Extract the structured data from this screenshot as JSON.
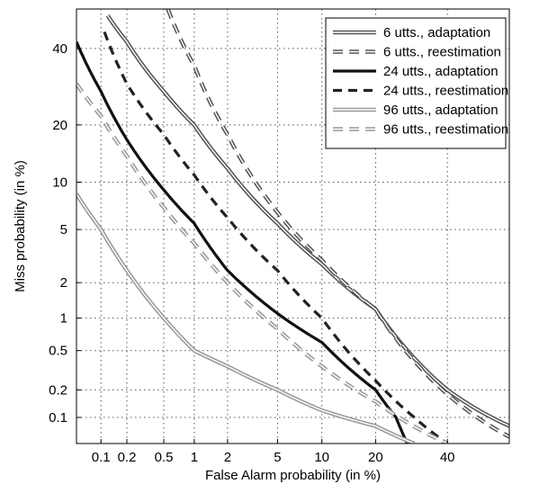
{
  "chart_data": {
    "type": "line",
    "title": "",
    "xlabel": "False Alarm probability (in %)",
    "ylabel": "Miss probability (in %)",
    "x_scale": "probit",
    "y_scale": "probit",
    "xlim": [
      0.05,
      60
    ],
    "ylim": [
      0.05,
      52
    ],
    "x_ticks": [
      0.1,
      0.2,
      0.5,
      1,
      2,
      5,
      10,
      20,
      40
    ],
    "x_tick_labels": [
      "0.1",
      "0.2",
      "0.5",
      "1",
      "2",
      "5",
      "10",
      "20",
      "40"
    ],
    "y_ticks": [
      0.1,
      0.2,
      0.5,
      1,
      2,
      5,
      10,
      20,
      40
    ],
    "y_tick_labels": [
      "0.1",
      "0.2",
      "0.5",
      "1",
      "2",
      "5",
      "10",
      "20",
      "40"
    ],
    "grid": true,
    "legend_position": "top-right",
    "series": [
      {
        "name": "6 utts., adaptation",
        "style": "double-solid",
        "color": "#555555",
        "points": [
          [
            0.12,
            50
          ],
          [
            0.2,
            42
          ],
          [
            0.5,
            28
          ],
          [
            1,
            20
          ],
          [
            2,
            12
          ],
          [
            5,
            5.5
          ],
          [
            10,
            2.8
          ],
          [
            20,
            1.2
          ],
          [
            40,
            0.2
          ],
          [
            60,
            0.08
          ]
        ]
      },
      {
        "name": "6 utts., reestimation",
        "style": "double-dashed",
        "color": "#555555",
        "points": [
          [
            0.55,
            52
          ],
          [
            1,
            35
          ],
          [
            2,
            18
          ],
          [
            5,
            6.5
          ],
          [
            10,
            3
          ],
          [
            20,
            1.2
          ],
          [
            40,
            0.18
          ],
          [
            60,
            0.06
          ]
        ]
      },
      {
        "name": "24 utts., adaptation",
        "style": "bold-solid",
        "color": "#111111",
        "points": [
          [
            0.05,
            42
          ],
          [
            0.1,
            28
          ],
          [
            0.2,
            17
          ],
          [
            0.5,
            9
          ],
          [
            1,
            5.5
          ],
          [
            2,
            2.5
          ],
          [
            5,
            1.1
          ],
          [
            10,
            0.6
          ],
          [
            20,
            0.2
          ],
          [
            25,
            0.1
          ],
          [
            28,
            0.05
          ]
        ]
      },
      {
        "name": "24 utts., reestimation",
        "style": "bold-dashed",
        "color": "#222222",
        "points": [
          [
            0.11,
            45
          ],
          [
            0.2,
            30
          ],
          [
            0.5,
            18
          ],
          [
            1,
            11
          ],
          [
            2,
            6
          ],
          [
            5,
            2.5
          ],
          [
            10,
            1
          ],
          [
            20,
            0.25
          ],
          [
            30,
            0.1
          ],
          [
            40,
            0.05
          ]
        ]
      },
      {
        "name": "96 utts., adaptation",
        "style": "double-solid",
        "color": "#999999",
        "points": [
          [
            0.05,
            8.5
          ],
          [
            0.1,
            5
          ],
          [
            0.2,
            2.5
          ],
          [
            0.5,
            1
          ],
          [
            1,
            0.5
          ],
          [
            2,
            0.35
          ],
          [
            5,
            0.2
          ],
          [
            10,
            0.12
          ],
          [
            20,
            0.08
          ],
          [
            30,
            0.05
          ]
        ]
      },
      {
        "name": "96 utts., reestimation",
        "style": "double-dashed",
        "color": "#999999",
        "points": [
          [
            0.05,
            30
          ],
          [
            0.1,
            22
          ],
          [
            0.2,
            14
          ],
          [
            0.5,
            7
          ],
          [
            1,
            4
          ],
          [
            2,
            2
          ],
          [
            5,
            0.8
          ],
          [
            10,
            0.35
          ],
          [
            20,
            0.15
          ],
          [
            40,
            0.05
          ]
        ]
      }
    ]
  }
}
